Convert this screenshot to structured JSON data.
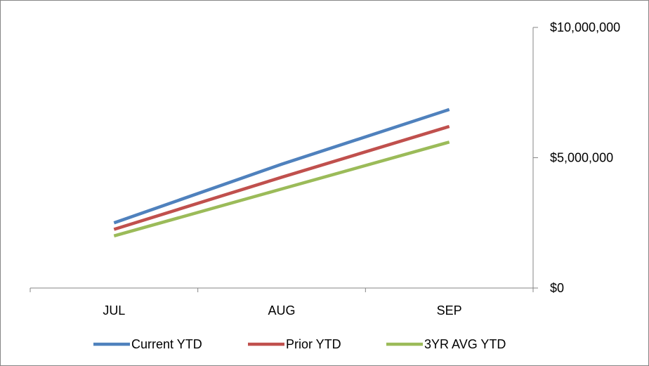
{
  "chart_data": {
    "type": "line",
    "categories": [
      "JUL",
      "AUG",
      "SEP"
    ],
    "series": [
      {
        "name": "Current YTD",
        "color": "#4F81BD",
        "values": [
          2500000,
          4750000,
          6850000
        ]
      },
      {
        "name": "Prior YTD",
        "color": "#C0504D",
        "values": [
          2250000,
          4250000,
          6200000
        ]
      },
      {
        "name": "3YR AVG YTD",
        "color": "#9BBB59",
        "values": [
          2000000,
          3800000,
          5600000
        ]
      }
    ],
    "y_ticks": [
      {
        "value": 0,
        "label": "$0"
      },
      {
        "value": 5000000,
        "label": "$5,000,000"
      },
      {
        "value": 10000000,
        "label": "$10,000,000"
      }
    ],
    "ylim": [
      0,
      10000000
    ],
    "y_axis_position": "right",
    "legend_position": "bottom",
    "grid": false
  }
}
